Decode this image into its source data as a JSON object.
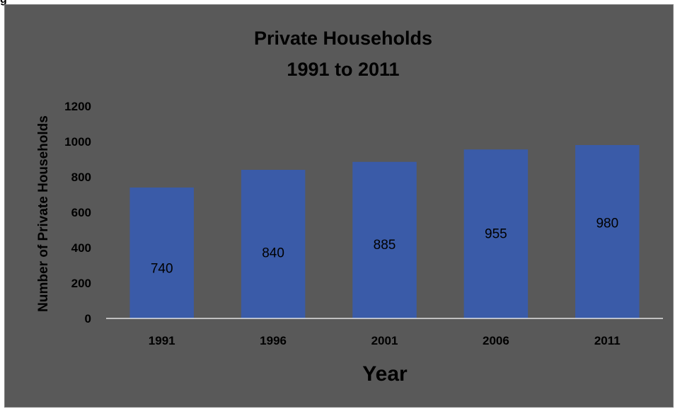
{
  "chart_data": {
    "type": "bar",
    "title_lines": [
      "Private Households",
      "1991 to 2011"
    ],
    "categories": [
      "1991",
      "1996",
      "2001",
      "2006",
      "2011"
    ],
    "values": [
      740,
      840,
      885,
      955,
      980
    ],
    "data_labels": [
      "740",
      "840",
      "885",
      "955",
      "980"
    ],
    "xlabel": "Year",
    "ylabel": "Number of Private Households",
    "ylim": [
      0,
      1200
    ],
    "yticks": [
      "0",
      "200",
      "400",
      "600",
      "800",
      "1000",
      "1200"
    ],
    "grid": false,
    "legend": "none",
    "colors": {
      "bar": "#3a5ba8",
      "background": "#595959",
      "text": "#000000",
      "axis": "#ffffff"
    }
  }
}
